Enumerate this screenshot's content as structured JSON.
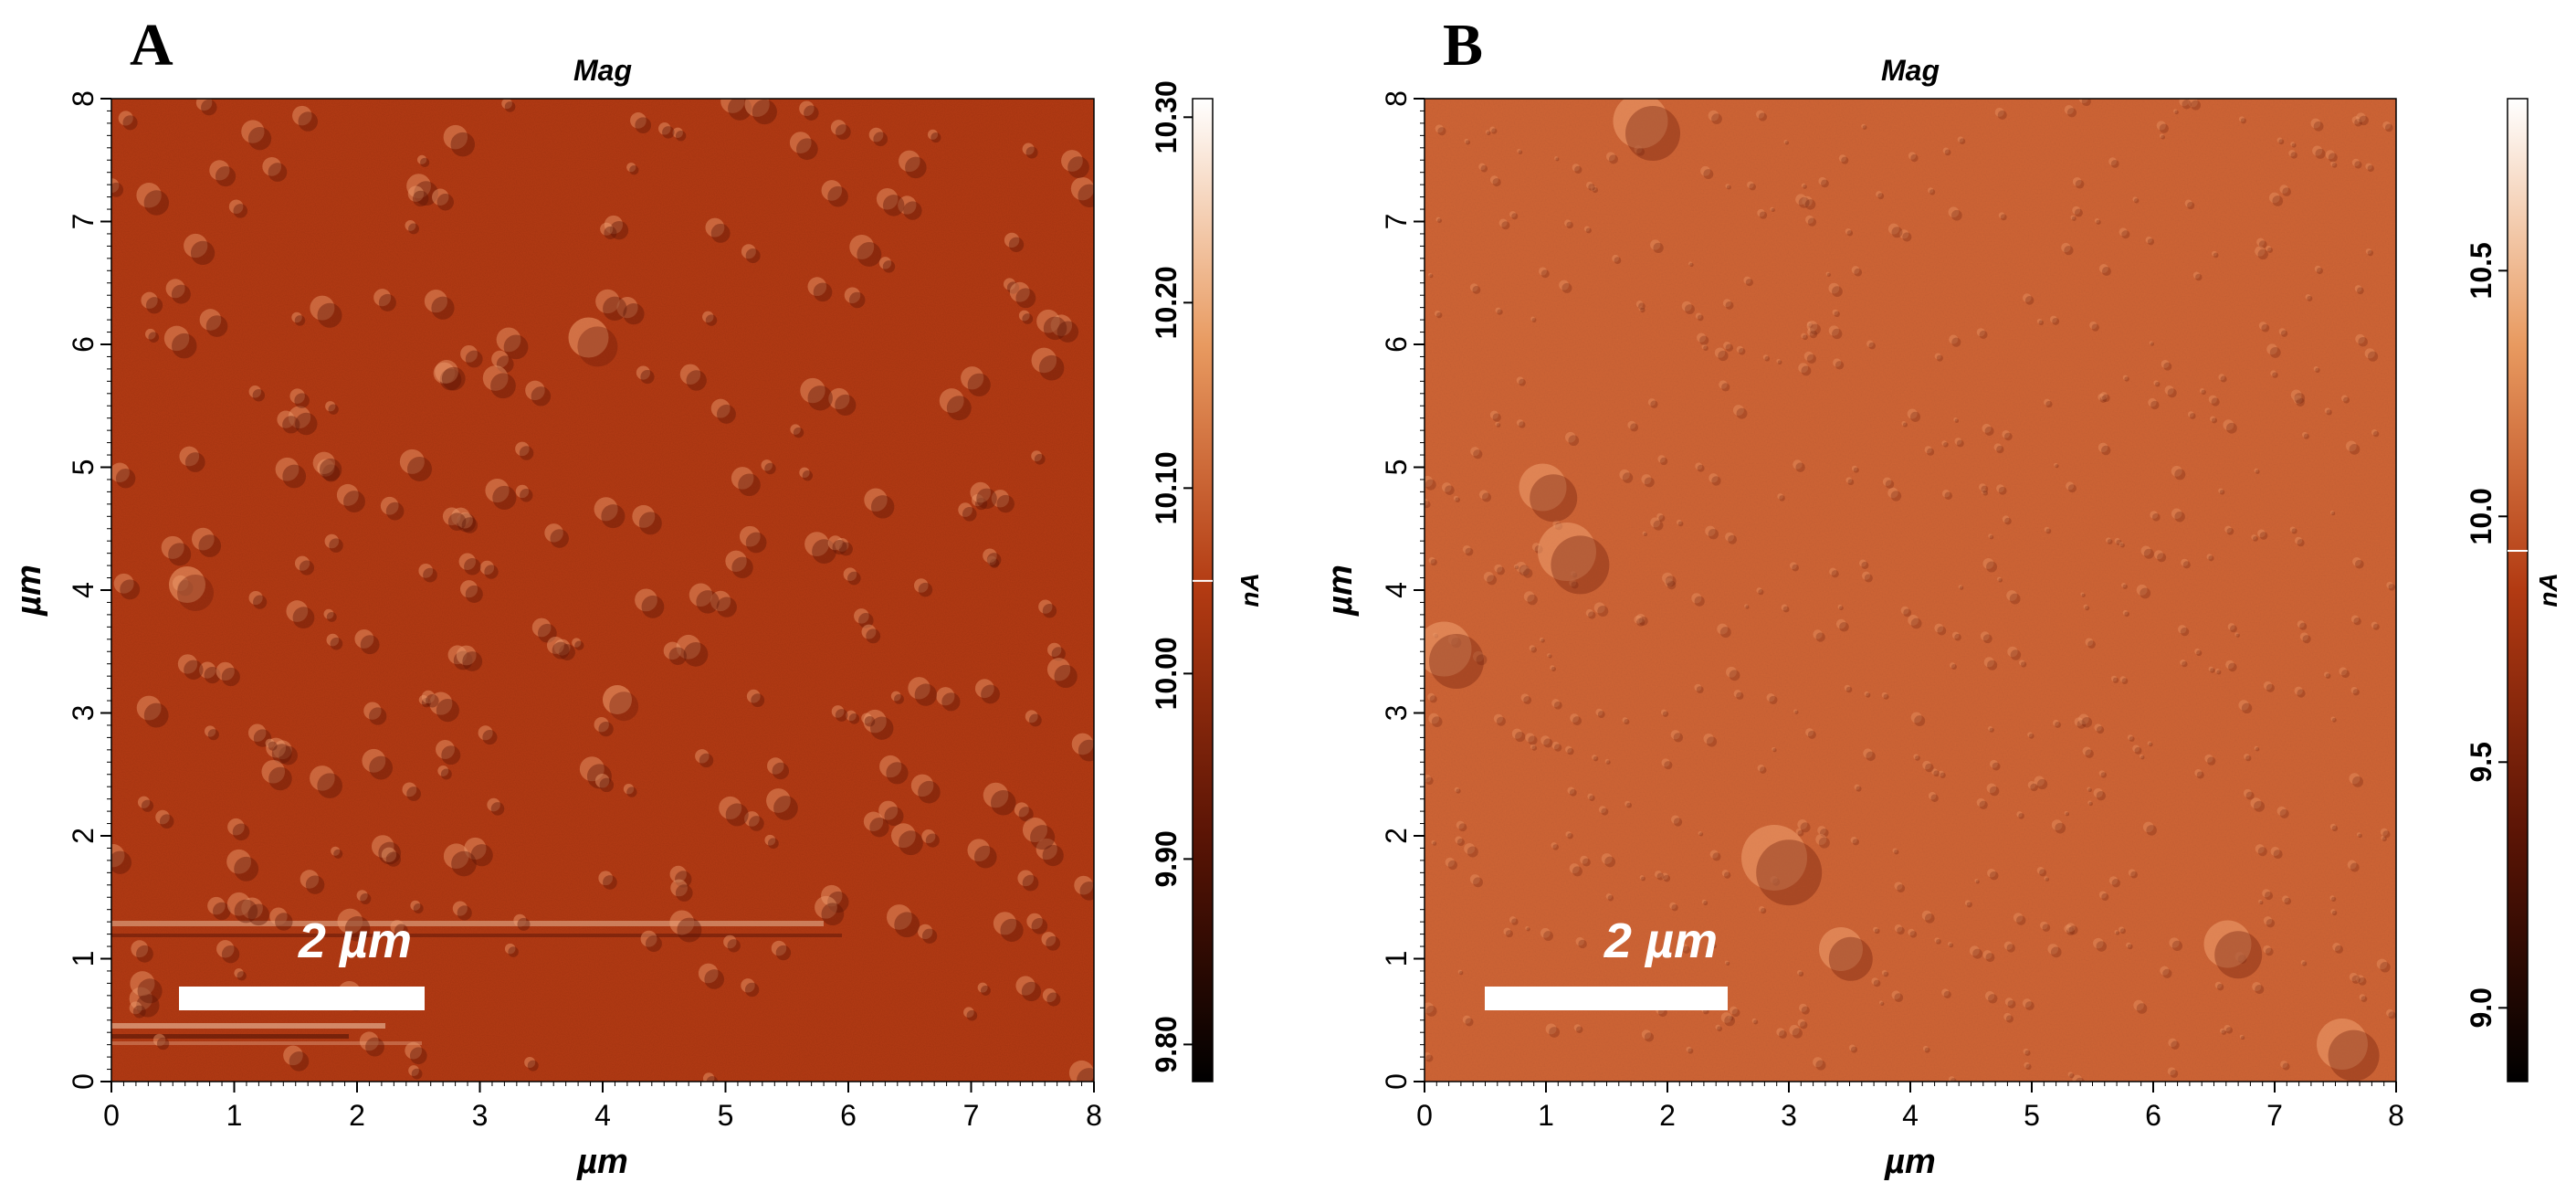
{
  "panels": [
    {
      "letter": "A",
      "title": "Mag",
      "xlabel": "µm",
      "ylabel": "µm",
      "xticks": [
        "0",
        "1",
        "2",
        "3",
        "4",
        "5",
        "6",
        "7",
        "8"
      ],
      "yticks": [
        "0",
        "1",
        "2",
        "3",
        "4",
        "5",
        "6",
        "7",
        "8"
      ],
      "scalebar_label": "2 µm",
      "scalebar_length_um": 2,
      "image_color": "#b63b14",
      "colorbar": {
        "unit": "nA",
        "ticks": [
          "9.80",
          "9.90",
          "10.00",
          "10.10",
          "10.20",
          "10.30"
        ],
        "min": 9.78,
        "max": 10.31,
        "marker_value": 10.05
      }
    },
    {
      "letter": "B",
      "title": "Mag",
      "xlabel": "µm",
      "ylabel": "µm",
      "xticks": [
        "0",
        "1",
        "2",
        "3",
        "4",
        "5",
        "6",
        "7",
        "8"
      ],
      "yticks": [
        "0",
        "1",
        "2",
        "3",
        "4",
        "5",
        "6",
        "7",
        "8"
      ],
      "scalebar_label": "2 µm",
      "scalebar_length_um": 2,
      "image_color": "#d06536",
      "colorbar": {
        "unit": "nA",
        "ticks": [
          "9.0",
          "9.5",
          "10.0",
          "10.5"
        ],
        "min": 8.85,
        "max": 10.85,
        "marker_value": 9.93
      }
    }
  ]
}
